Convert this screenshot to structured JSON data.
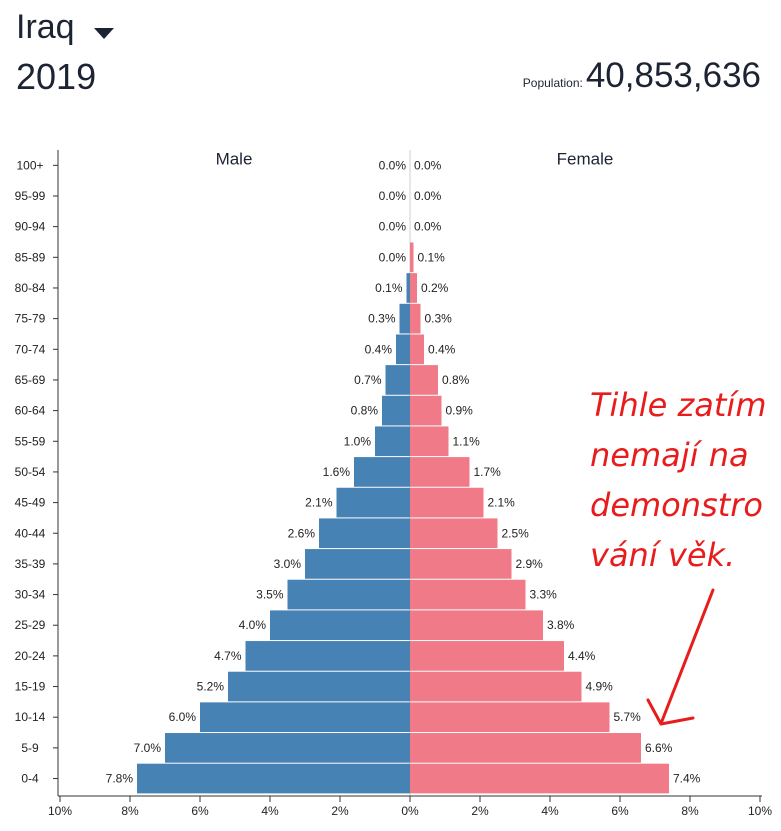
{
  "header": {
    "country": "Iraq",
    "year": "2019",
    "population_label": "Population:",
    "population_value": "40,853,636"
  },
  "annotation": {
    "lines": [
      "Tihle zatím",
      "nemají na",
      "demonstro",
      "vání věk."
    ],
    "color": "#e81c1c"
  },
  "colors": {
    "male": "#4682b4",
    "female": "#f07a87"
  },
  "chart_data": {
    "type": "bar",
    "orientation": "horizontal",
    "subtype": "population-pyramid",
    "categories": [
      "100+",
      "95-99",
      "90-94",
      "85-89",
      "80-84",
      "75-79",
      "70-74",
      "65-69",
      "60-64",
      "55-59",
      "50-54",
      "45-49",
      "40-44",
      "35-39",
      "30-34",
      "25-29",
      "20-24",
      "15-19",
      "10-14",
      "5-9",
      "0-4"
    ],
    "series": [
      {
        "name": "Male",
        "values": [
          0.0,
          0.0,
          0.0,
          0.0,
          0.1,
          0.3,
          0.4,
          0.7,
          0.8,
          1.0,
          1.6,
          2.1,
          2.6,
          3.0,
          3.5,
          4.0,
          4.7,
          5.2,
          6.0,
          7.0,
          7.8
        ]
      },
      {
        "name": "Female",
        "values": [
          0.0,
          0.0,
          0.0,
          0.1,
          0.2,
          0.3,
          0.4,
          0.8,
          0.9,
          1.1,
          1.7,
          2.1,
          2.5,
          2.9,
          3.3,
          3.8,
          4.4,
          4.9,
          5.7,
          6.6,
          7.4
        ]
      }
    ],
    "value_labels": {
      "male": [
        "0.0%",
        "0.0%",
        "0.0%",
        "0.0%",
        "0.1%",
        "0.3%",
        "0.4%",
        "0.7%",
        "0.8%",
        "1.0%",
        "1.6%",
        "2.1%",
        "2.6%",
        "3.0%",
        "3.5%",
        "4.0%",
        "4.7%",
        "5.2%",
        "6.0%",
        "7.0%",
        "7.8%"
      ],
      "female": [
        "0.0%",
        "0.0%",
        "0.0%",
        "0.1%",
        "0.2%",
        "0.3%",
        "0.4%",
        "0.8%",
        "0.9%",
        "1.1%",
        "1.7%",
        "2.1%",
        "2.5%",
        "2.9%",
        "3.3%",
        "3.8%",
        "4.4%",
        "4.9%",
        "5.7%",
        "6.6%",
        "7.4%"
      ]
    },
    "x_ticks": [
      "10%",
      "8%",
      "6%",
      "4%",
      "2%",
      "0%",
      "2%",
      "4%",
      "6%",
      "8%",
      "10%"
    ],
    "xlim": [
      -10,
      10
    ],
    "unit": "%"
  }
}
